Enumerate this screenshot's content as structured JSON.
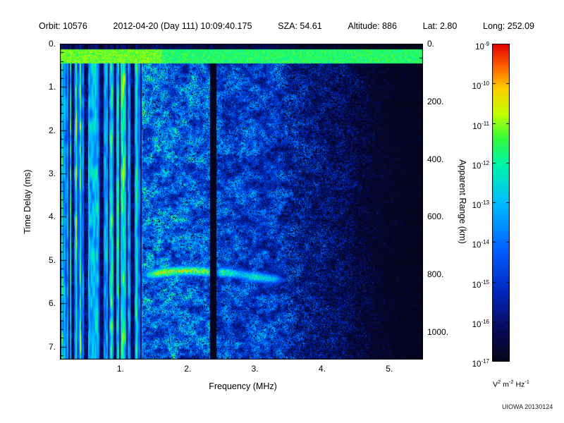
{
  "header": {
    "items": [
      "Orbit: 10576",
      "2012-04-20 (Day 111) 10:09:40.175",
      "SZA:  54.61",
      "Altitude:   886",
      "Lat:  2.80",
      "Long: 252.09"
    ]
  },
  "chart_data": {
    "type": "heatmap",
    "title": "",
    "xlabel": "Frequency (MHz)",
    "ylabel": "Time Delay (ms)",
    "y2label": "Apparent Range (km)",
    "x_range": [
      0.1,
      5.5
    ],
    "y_range": [
      0,
      7.3
    ],
    "x_major_ticks": [
      {
        "value": 1,
        "label": "1."
      },
      {
        "value": 2,
        "label": "2."
      },
      {
        "value": 3,
        "label": "3."
      },
      {
        "value": 4,
        "label": "4."
      },
      {
        "value": 5,
        "label": "5."
      }
    ],
    "x_minor_step": 0.2,
    "y_major_ticks": [
      {
        "value": 0,
        "label": "0."
      },
      {
        "value": 1,
        "label": "1."
      },
      {
        "value": 2,
        "label": "2."
      },
      {
        "value": 3,
        "label": "3."
      },
      {
        "value": 4,
        "label": "4."
      },
      {
        "value": 5,
        "label": "5."
      },
      {
        "value": 6,
        "label": "6."
      },
      {
        "value": 7,
        "label": "7."
      }
    ],
    "y_minor_step": 0.2,
    "y2_ticks": [
      {
        "value": 0,
        "label": "0."
      },
      {
        "value": 200,
        "label": "200."
      },
      {
        "value": 400,
        "label": "400."
      },
      {
        "value": 600,
        "label": "600."
      },
      {
        "value": 800,
        "label": "800."
      },
      {
        "value": 1000,
        "label": "1000."
      }
    ],
    "y2_minor_step_km": 50,
    "range_km_per_ms": 150,
    "colorbar": {
      "exponents": [
        "-9",
        "-10",
        "-11",
        "-12",
        "-13",
        "-14",
        "-15",
        "-16",
        "-17"
      ],
      "unit_parts": [
        {
          "base": "V",
          "sup": "2"
        },
        {
          "base": " m",
          "sup": "-2"
        },
        {
          "base": " Hz",
          "sup": "-1"
        }
      ],
      "stops": [
        [
          0.0,
          [
            4,
            4,
            24
          ]
        ],
        [
          0.1,
          [
            8,
            10,
            90
          ]
        ],
        [
          0.22,
          [
            0,
            40,
            190
          ]
        ],
        [
          0.35,
          [
            0,
            95,
            255
          ]
        ],
        [
          0.5,
          [
            0,
            190,
            255
          ]
        ],
        [
          0.62,
          [
            0,
            245,
            170
          ]
        ],
        [
          0.7,
          [
            50,
            250,
            60
          ]
        ],
        [
          0.78,
          [
            195,
            255,
            0
          ]
        ],
        [
          0.86,
          [
            255,
            205,
            0
          ]
        ],
        [
          0.93,
          [
            255,
            95,
            0
          ]
        ],
        [
          1.0,
          [
            225,
            0,
            0
          ]
        ]
      ]
    },
    "features": {
      "top_band_ms": [
        0.12,
        0.45
      ],
      "stripe_region_max_mhz": 1.32,
      "dark_column_mhz": [
        2.33,
        2.42
      ],
      "surface_trace": {
        "delay_ms": 5.34,
        "freq_span_mhz": [
          1.28,
          3.5
        ]
      },
      "noise_fade_start_mhz": 3.5,
      "black_region_start_mhz": 4.75
    },
    "credit": "UIOWA 20130124"
  }
}
